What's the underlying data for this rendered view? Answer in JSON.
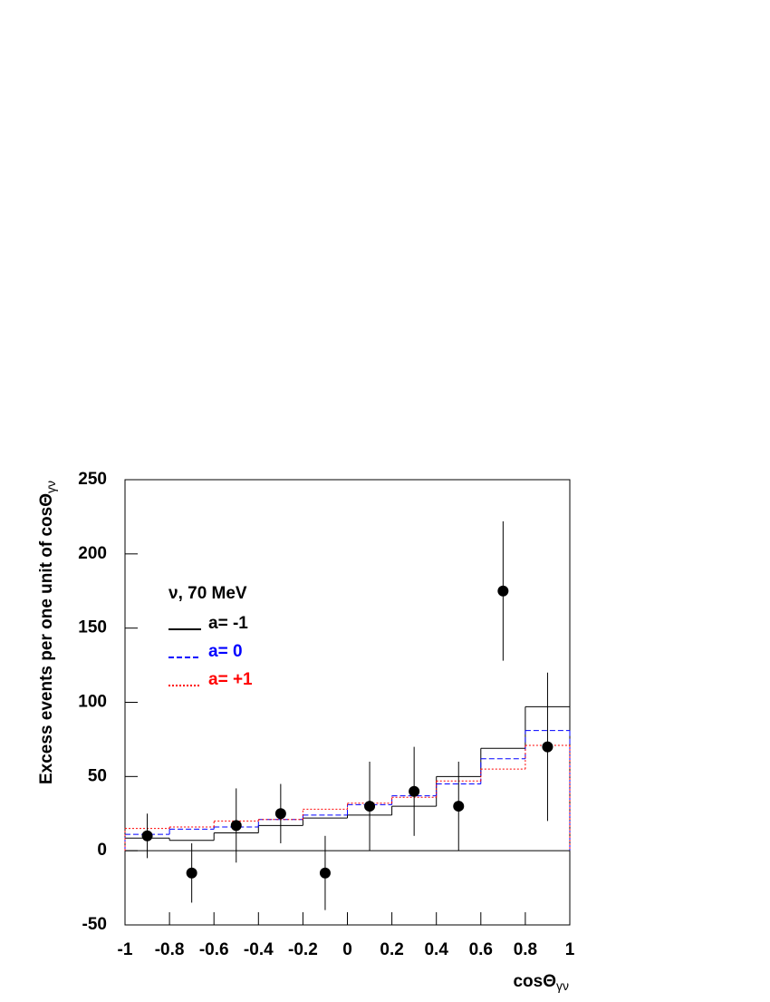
{
  "chart_data": {
    "type": "histogram",
    "annotation": "ν, 70 MeV",
    "x_label": {
      "text": "cosΘ",
      "sub": "γν"
    },
    "y_label": {
      "text": "Excess events per one unit of cosΘ",
      "sub": "γν"
    },
    "bins": [
      -1,
      -0.8,
      -0.6,
      -0.4,
      -0.2,
      0,
      0.2,
      0.4,
      0.6,
      0.8,
      1
    ],
    "series": [
      {
        "name": "a= -1",
        "color": "#000000",
        "style": "solid",
        "values": [
          8.5,
          7,
          12,
          17,
          22,
          24,
          30,
          50,
          69,
          97
        ]
      },
      {
        "name": "a= 0",
        "color": "#0000ff",
        "style": "dashed",
        "values": [
          11,
          14.5,
          16,
          21,
          24,
          31,
          37,
          45,
          62,
          81
        ]
      },
      {
        "name": "a= +1",
        "color": "#ff0000",
        "style": "dotted",
        "values": [
          15,
          16,
          20,
          21,
          28,
          32,
          36,
          47,
          55,
          71
        ]
      }
    ],
    "points": {
      "color": "#000000",
      "x": [
        -0.9,
        -0.7,
        -0.5,
        -0.3,
        -0.1,
        0.1,
        0.3,
        0.5,
        0.7,
        0.9
      ],
      "values": [
        10,
        -15,
        17,
        25,
        -15,
        30,
        40,
        30,
        175,
        70
      ],
      "errors": [
        15,
        20,
        25,
        20,
        25,
        30,
        30,
        30,
        47,
        50
      ]
    },
    "zero_line": true,
    "xlim": [
      -1,
      1
    ],
    "ylim": [
      -50,
      250
    ],
    "xticks": [
      -1,
      -0.8,
      -0.6,
      -0.4,
      -0.2,
      0,
      0.2,
      0.4,
      0.6,
      0.8,
      1
    ],
    "yticks": [
      -50,
      0,
      50,
      100,
      150,
      200,
      250
    ]
  }
}
